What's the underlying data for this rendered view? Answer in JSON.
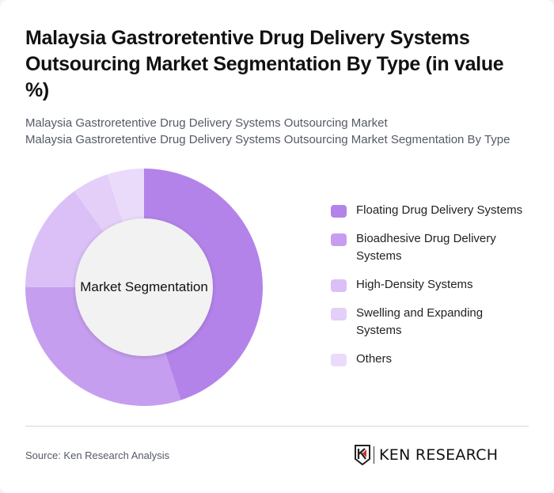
{
  "header": {
    "title": "Malaysia Gastroretentive Drug Delivery Systems Outsourcing Market Segmentation By Type (in value %)",
    "subtitle_line1": "Malaysia Gastroretentive Drug Delivery Systems Outsourcing Market",
    "subtitle_line2": "Malaysia Gastroretentive Drug Delivery Systems Outsourcing Market Segmentation By Type"
  },
  "chart": {
    "center_label": "Market Segmentation"
  },
  "legend": {
    "items": [
      {
        "label": "Floating Drug Delivery Systems",
        "color": "#b383ea"
      },
      {
        "label": "Bioadhesive Drug Delivery Systems",
        "color": "#c69ef0"
      },
      {
        "label": "High-Density Systems",
        "color": "#dac0f6"
      },
      {
        "label": "Swelling and Expanding Systems",
        "color": "#e3cff8"
      },
      {
        "label": "Others",
        "color": "#eadbfa"
      }
    ]
  },
  "footer": {
    "source": "Source: Ken Research Analysis",
    "logo_text": "KEN RESEARCH"
  },
  "chart_data": {
    "type": "pie",
    "variant": "donut",
    "title": "Malaysia Gastroretentive Drug Delivery Systems Outsourcing Market Segmentation By Type (in value %)",
    "center_label": "Market Segmentation",
    "categories": [
      "Floating Drug Delivery Systems",
      "Bioadhesive Drug Delivery Systems",
      "High-Density Systems",
      "Swelling and Expanding Systems",
      "Others"
    ],
    "values": [
      45,
      30,
      15,
      5,
      5
    ],
    "colors": [
      "#b383ea",
      "#c69ef0",
      "#dac0f6",
      "#e3cff8",
      "#eadbfa"
    ],
    "unit": "%",
    "legend_position": "right",
    "start_angle": "top, clockwise"
  }
}
